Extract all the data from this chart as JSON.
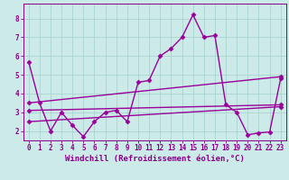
{
  "xlabel": "Windchill (Refroidissement éolien,°C)",
  "background_color": "#cceae8",
  "line_color": "#990099",
  "grid_color": "#aad4d0",
  "xlim": [
    -0.5,
    23.5
  ],
  "ylim": [
    1.5,
    8.8
  ],
  "yticks": [
    2,
    3,
    4,
    5,
    6,
    7,
    8
  ],
  "xticks": [
    0,
    1,
    2,
    3,
    4,
    5,
    6,
    7,
    8,
    9,
    10,
    11,
    12,
    13,
    14,
    15,
    16,
    17,
    18,
    19,
    20,
    21,
    22,
    23
  ],
  "series1_x": [
    0,
    1,
    2,
    3,
    4,
    5,
    6,
    7,
    8,
    9,
    10,
    11,
    12,
    13,
    14,
    15,
    16,
    17,
    18,
    19,
    20,
    21,
    22,
    23
  ],
  "series1_y": [
    5.7,
    3.5,
    2.0,
    3.0,
    2.3,
    1.7,
    2.5,
    3.0,
    3.1,
    2.5,
    4.6,
    4.7,
    6.0,
    6.4,
    7.0,
    8.2,
    7.0,
    7.1,
    3.4,
    3.0,
    1.8,
    1.9,
    1.95,
    4.8
  ],
  "series2_x": [
    0,
    23
  ],
  "series2_y": [
    3.5,
    4.9
  ],
  "series3_x": [
    0,
    23
  ],
  "series3_y": [
    3.1,
    3.4
  ],
  "series4_x": [
    0,
    23
  ],
  "series4_y": [
    2.5,
    3.3
  ],
  "marker": "D",
  "marker_size": 2.5,
  "linewidth": 1.0,
  "xlabel_fontsize": 6.5,
  "tick_fontsize": 5.5,
  "tick_color": "#880088",
  "label_color": "#880088"
}
